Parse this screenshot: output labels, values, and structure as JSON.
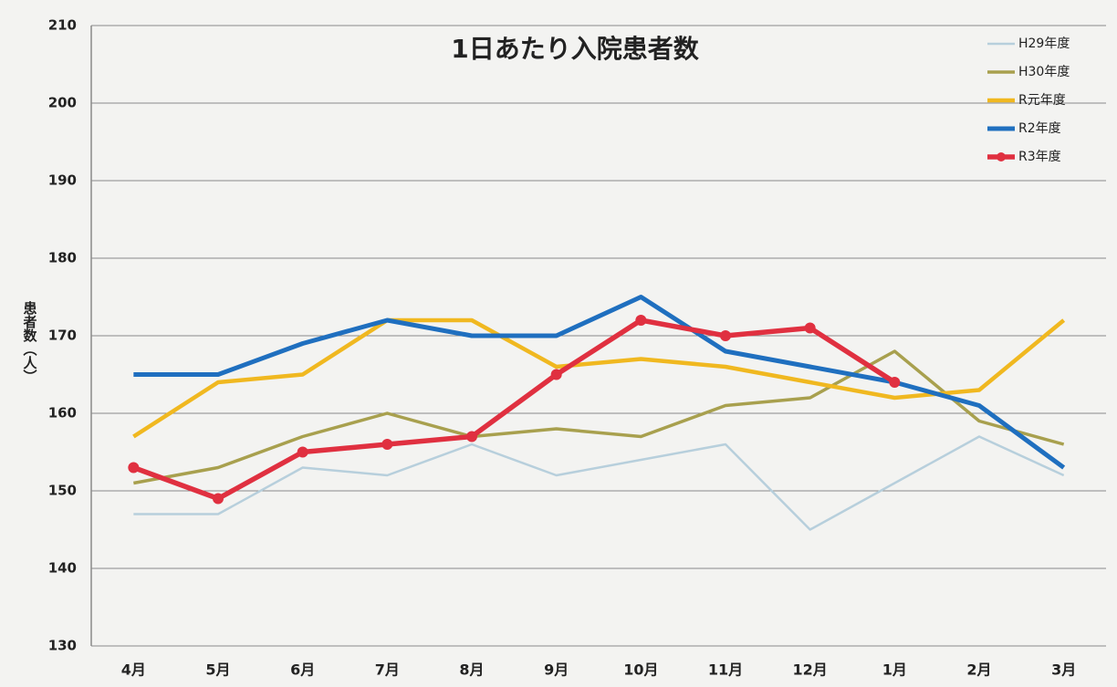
{
  "chart_data": {
    "type": "line",
    "title": "1日あたり入院患者数",
    "y_label": "患者数（人）",
    "categories": [
      "4月",
      "5月",
      "6月",
      "7月",
      "8月",
      "9月",
      "10月",
      "11月",
      "12月",
      "1月",
      "2月",
      "3月"
    ],
    "series": [
      {
        "name": "H29年度",
        "color": "#b7cfdc",
        "values": [
          147,
          147,
          153,
          152,
          156,
          152,
          154,
          156,
          145,
          151,
          157,
          152
        ]
      },
      {
        "name": "H30年度",
        "color": "#a8a04e",
        "values": [
          151,
          153,
          157,
          160,
          157,
          158,
          157,
          161,
          162,
          168,
          159,
          156
        ]
      },
      {
        "name": "R元年度",
        "color": "#f0b820",
        "values": [
          157,
          164,
          165,
          172,
          172,
          166,
          167,
          166,
          164,
          162,
          163,
          172
        ]
      },
      {
        "name": "R2年度",
        "color": "#1f6fbf",
        "values": [
          165,
          165,
          169,
          172,
          170,
          170,
          175,
          168,
          166,
          164,
          161,
          153
        ]
      },
      {
        "name": "R3年度",
        "color": "#e03040",
        "marker": true,
        "values": [
          153,
          149,
          155,
          156,
          157,
          165,
          172,
          170,
          171,
          164,
          null,
          null
        ]
      }
    ],
    "ylim": [
      130,
      210
    ],
    "yticks": [
      130,
      140,
      150,
      160,
      170,
      180,
      190,
      200,
      210
    ],
    "grid": true,
    "legend": "top-right"
  }
}
